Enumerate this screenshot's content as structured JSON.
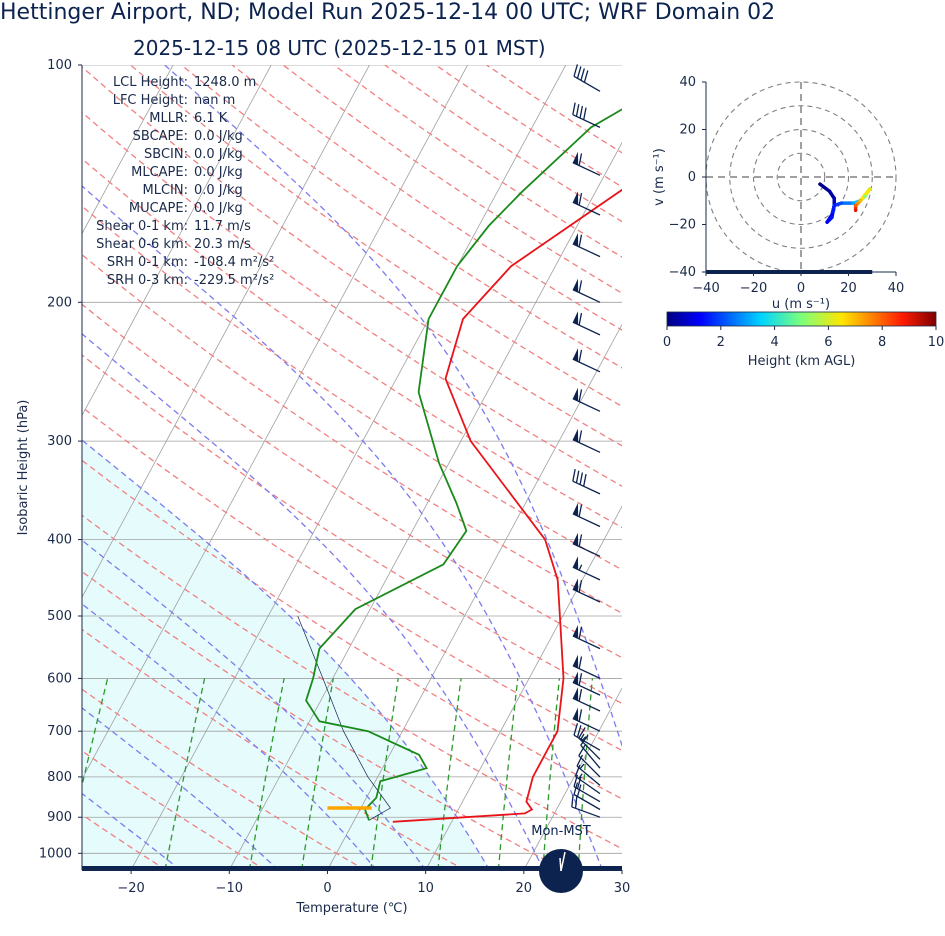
{
  "header": {
    "title": "Hettinger Airport, ND; Model Run 2025-12-14 00 UTC; WRF Domain 02",
    "subtitle": "2025-12-15 08 UTC  (2025-12-15 01 MST)"
  },
  "indices": [
    {
      "label": "LCL Height",
      "value": "1248.0 m"
    },
    {
      "label": "LFC Height",
      "value": "nan m"
    },
    {
      "label": "MLLR",
      "value": "6.1 K"
    },
    {
      "label": "SBCAPE",
      "value": "0.0 J/kg"
    },
    {
      "label": "SBCIN",
      "value": "0.0 J/kg"
    },
    {
      "label": "MLCAPE",
      "value": "0.0 J/kg"
    },
    {
      "label": "MLCIN",
      "value": "0.0 J/kg"
    },
    {
      "label": "MUCAPE",
      "value": "0.0 J/kg"
    },
    {
      "label": "Shear 0-1 km",
      "value": "11.7 m/s"
    },
    {
      "label": "Shear 0-6 km",
      "value": "20.3 m/s"
    },
    {
      "label": "SRH 0-1 km",
      "value": "-108.4 m²/s²"
    },
    {
      "label": "SRH 0-3 km",
      "value": "-229.5 m²/s²"
    }
  ],
  "clock_label": "Mon-MST",
  "colors": {
    "temperature": "#e8141a",
    "dewpoint": "#1a8a1a",
    "dry_adiabat": "#f08080",
    "moist_adiabat": "#7b7bef",
    "mixing_ratio": "#2a9a2a",
    "isotherm": "#a0a0a0",
    "shading": "#e6fcfc",
    "barb": "#0c2350",
    "lcl_marker": "#ffa500"
  },
  "chart_data": [
    {
      "type": "line",
      "name": "skew-t",
      "xlabel": "Temperature (℃)",
      "ylabel": "Isobaric Height (hPa)",
      "xlim": [
        -25,
        30
      ],
      "ylim": [
        1050,
        100
      ],
      "y_scale": "log",
      "x_ticks": [
        "−20",
        "−10",
        "0",
        "10",
        "20",
        "30"
      ],
      "x_tick_values": [
        -20,
        -10,
        0,
        10,
        20,
        30
      ],
      "y_ticks": [
        100,
        200,
        300,
        400,
        500,
        600,
        700,
        800,
        900,
        1000
      ],
      "grid": true,
      "temperature": [
        [
          912,
          4.0
        ],
        [
          890,
          17.0
        ],
        [
          880,
          17.5
        ],
        [
          860,
          16.5
        ],
        [
          800,
          15.8
        ],
        [
          700,
          15.8
        ],
        [
          600,
          13.5
        ],
        [
          500,
          9.7
        ],
        [
          450,
          7.5
        ],
        [
          400,
          4.0
        ],
        [
          300,
          -9.0
        ],
        [
          250,
          -15.0
        ],
        [
          210,
          -16.5
        ],
        [
          180,
          -14.5
        ],
        [
          140,
          -6.5
        ],
        [
          120,
          -1.0
        ],
        [
          100,
          0.5
        ]
      ],
      "dewpoint": [
        [
          908,
          1.5
        ],
        [
          880,
          0.5
        ],
        [
          850,
          1.0
        ],
        [
          810,
          0.5
        ],
        [
          780,
          4.5
        ],
        [
          750,
          3.0
        ],
        [
          700,
          -3.5
        ],
        [
          680,
          -9.0
        ],
        [
          640,
          -11.5
        ],
        [
          600,
          -12.0
        ],
        [
          550,
          -13.0
        ],
        [
          490,
          -11.5
        ],
        [
          430,
          -5.0
        ],
        [
          390,
          -4.5
        ],
        [
          360,
          -7.0
        ],
        [
          320,
          -11.0
        ],
        [
          260,
          -17.0
        ],
        [
          210,
          -20.0
        ],
        [
          180,
          -20.0
        ],
        [
          160,
          -19.0
        ],
        [
          145,
          -17.5
        ],
        [
          120,
          -14.0
        ],
        [
          100,
          -6.5
        ]
      ],
      "lcl": {
        "pressure": 876,
        "t_min": 0,
        "t_max": 4.5
      },
      "parcel": [
        [
          908,
          1.5
        ],
        [
          876,
          3.0
        ],
        [
          800,
          -1.0
        ],
        [
          700,
          -6.0
        ],
        [
          600,
          -11.0
        ],
        [
          500,
          -17.0
        ]
      ],
      "wind_barbs": [
        {
          "p": 900,
          "speed": 20,
          "dir": 290
        },
        {
          "p": 880,
          "speed": 22,
          "dir": 300
        },
        {
          "p": 860,
          "speed": 20,
          "dir": 300
        },
        {
          "p": 840,
          "speed": 18,
          "dir": 305
        },
        {
          "p": 820,
          "speed": 15,
          "dir": 310
        },
        {
          "p": 800,
          "speed": 12,
          "dir": 315
        },
        {
          "p": 780,
          "speed": 10,
          "dir": 320
        },
        {
          "p": 760,
          "speed": 15,
          "dir": 315
        },
        {
          "p": 740,
          "speed": 25,
          "dir": 300
        },
        {
          "p": 700,
          "speed": 60,
          "dir": 295
        },
        {
          "p": 660,
          "speed": 60,
          "dir": 295
        },
        {
          "p": 630,
          "speed": 60,
          "dir": 295
        },
        {
          "p": 600,
          "speed": 60,
          "dir": 295
        },
        {
          "p": 550,
          "speed": 60,
          "dir": 295
        },
        {
          "p": 480,
          "speed": 60,
          "dir": 295
        },
        {
          "p": 450,
          "speed": 55,
          "dir": 295
        },
        {
          "p": 420,
          "speed": 60,
          "dir": 295
        },
        {
          "p": 385,
          "speed": 60,
          "dir": 295
        },
        {
          "p": 350,
          "speed": 40,
          "dir": 295
        },
        {
          "p": 310,
          "speed": 60,
          "dir": 295
        },
        {
          "p": 275,
          "speed": 60,
          "dir": 295
        },
        {
          "p": 245,
          "speed": 60,
          "dir": 295
        },
        {
          "p": 220,
          "speed": 60,
          "dir": 295
        },
        {
          "p": 200,
          "speed": 60,
          "dir": 295
        },
        {
          "p": 175,
          "speed": 60,
          "dir": 295
        },
        {
          "p": 155,
          "speed": 60,
          "dir": 295
        },
        {
          "p": 138,
          "speed": 60,
          "dir": 295
        },
        {
          "p": 120,
          "speed": 40,
          "dir": 295
        },
        {
          "p": 108,
          "speed": 40,
          "dir": 300
        }
      ]
    },
    {
      "type": "line",
      "name": "hodograph",
      "xlabel": "u (m s⁻¹)",
      "ylabel": "v (m s⁻¹)",
      "xlim": [
        -40,
        40
      ],
      "ylim": [
        -40,
        40
      ],
      "x_ticks": [
        "−40",
        "−20",
        "0",
        "20",
        "40"
      ],
      "y_ticks": [
        "40",
        "20",
        "0",
        "−20",
        "−40"
      ],
      "x_tick_values": [
        -40,
        -20,
        0,
        20,
        40
      ],
      "y_tick_values": [
        40,
        20,
        0,
        -20,
        -40
      ],
      "rings": [
        10,
        20,
        30,
        40
      ],
      "points": [
        {
          "u": 8,
          "v": -3,
          "z": 0.1
        },
        {
          "u": 12,
          "v": -6,
          "z": 0.3
        },
        {
          "u": 14,
          "v": -9,
          "z": 0.5
        },
        {
          "u": 14,
          "v": -12,
          "z": 0.8
        },
        {
          "u": 13,
          "v": -16,
          "z": 1.0
        },
        {
          "u": 11,
          "v": -19,
          "z": 1.2
        },
        {
          "u": 13,
          "v": -17,
          "z": 1.4
        },
        {
          "u": 14,
          "v": -12,
          "z": 1.6
        },
        {
          "u": 17,
          "v": -11,
          "z": 2.0
        },
        {
          "u": 22,
          "v": -11,
          "z": 3.0
        },
        {
          "u": 25,
          "v": -10,
          "z": 4.0
        },
        {
          "u": 27,
          "v": -8,
          "z": 5.0
        },
        {
          "u": 29,
          "v": -5,
          "z": 6.0
        },
        {
          "u": 25,
          "v": -10,
          "z": 7.0
        },
        {
          "u": 23,
          "v": -12,
          "z": 8.0
        },
        {
          "u": 23,
          "v": -14,
          "z": 9.0
        }
      ]
    },
    {
      "type": "heatmap",
      "name": "colorbar",
      "label": "Height (km AGL)",
      "range": [
        0,
        10
      ],
      "ticks": [
        "0",
        "2",
        "4",
        "6",
        "8",
        "10"
      ],
      "tick_values": [
        0,
        2,
        4,
        6,
        8,
        10
      ]
    }
  ]
}
